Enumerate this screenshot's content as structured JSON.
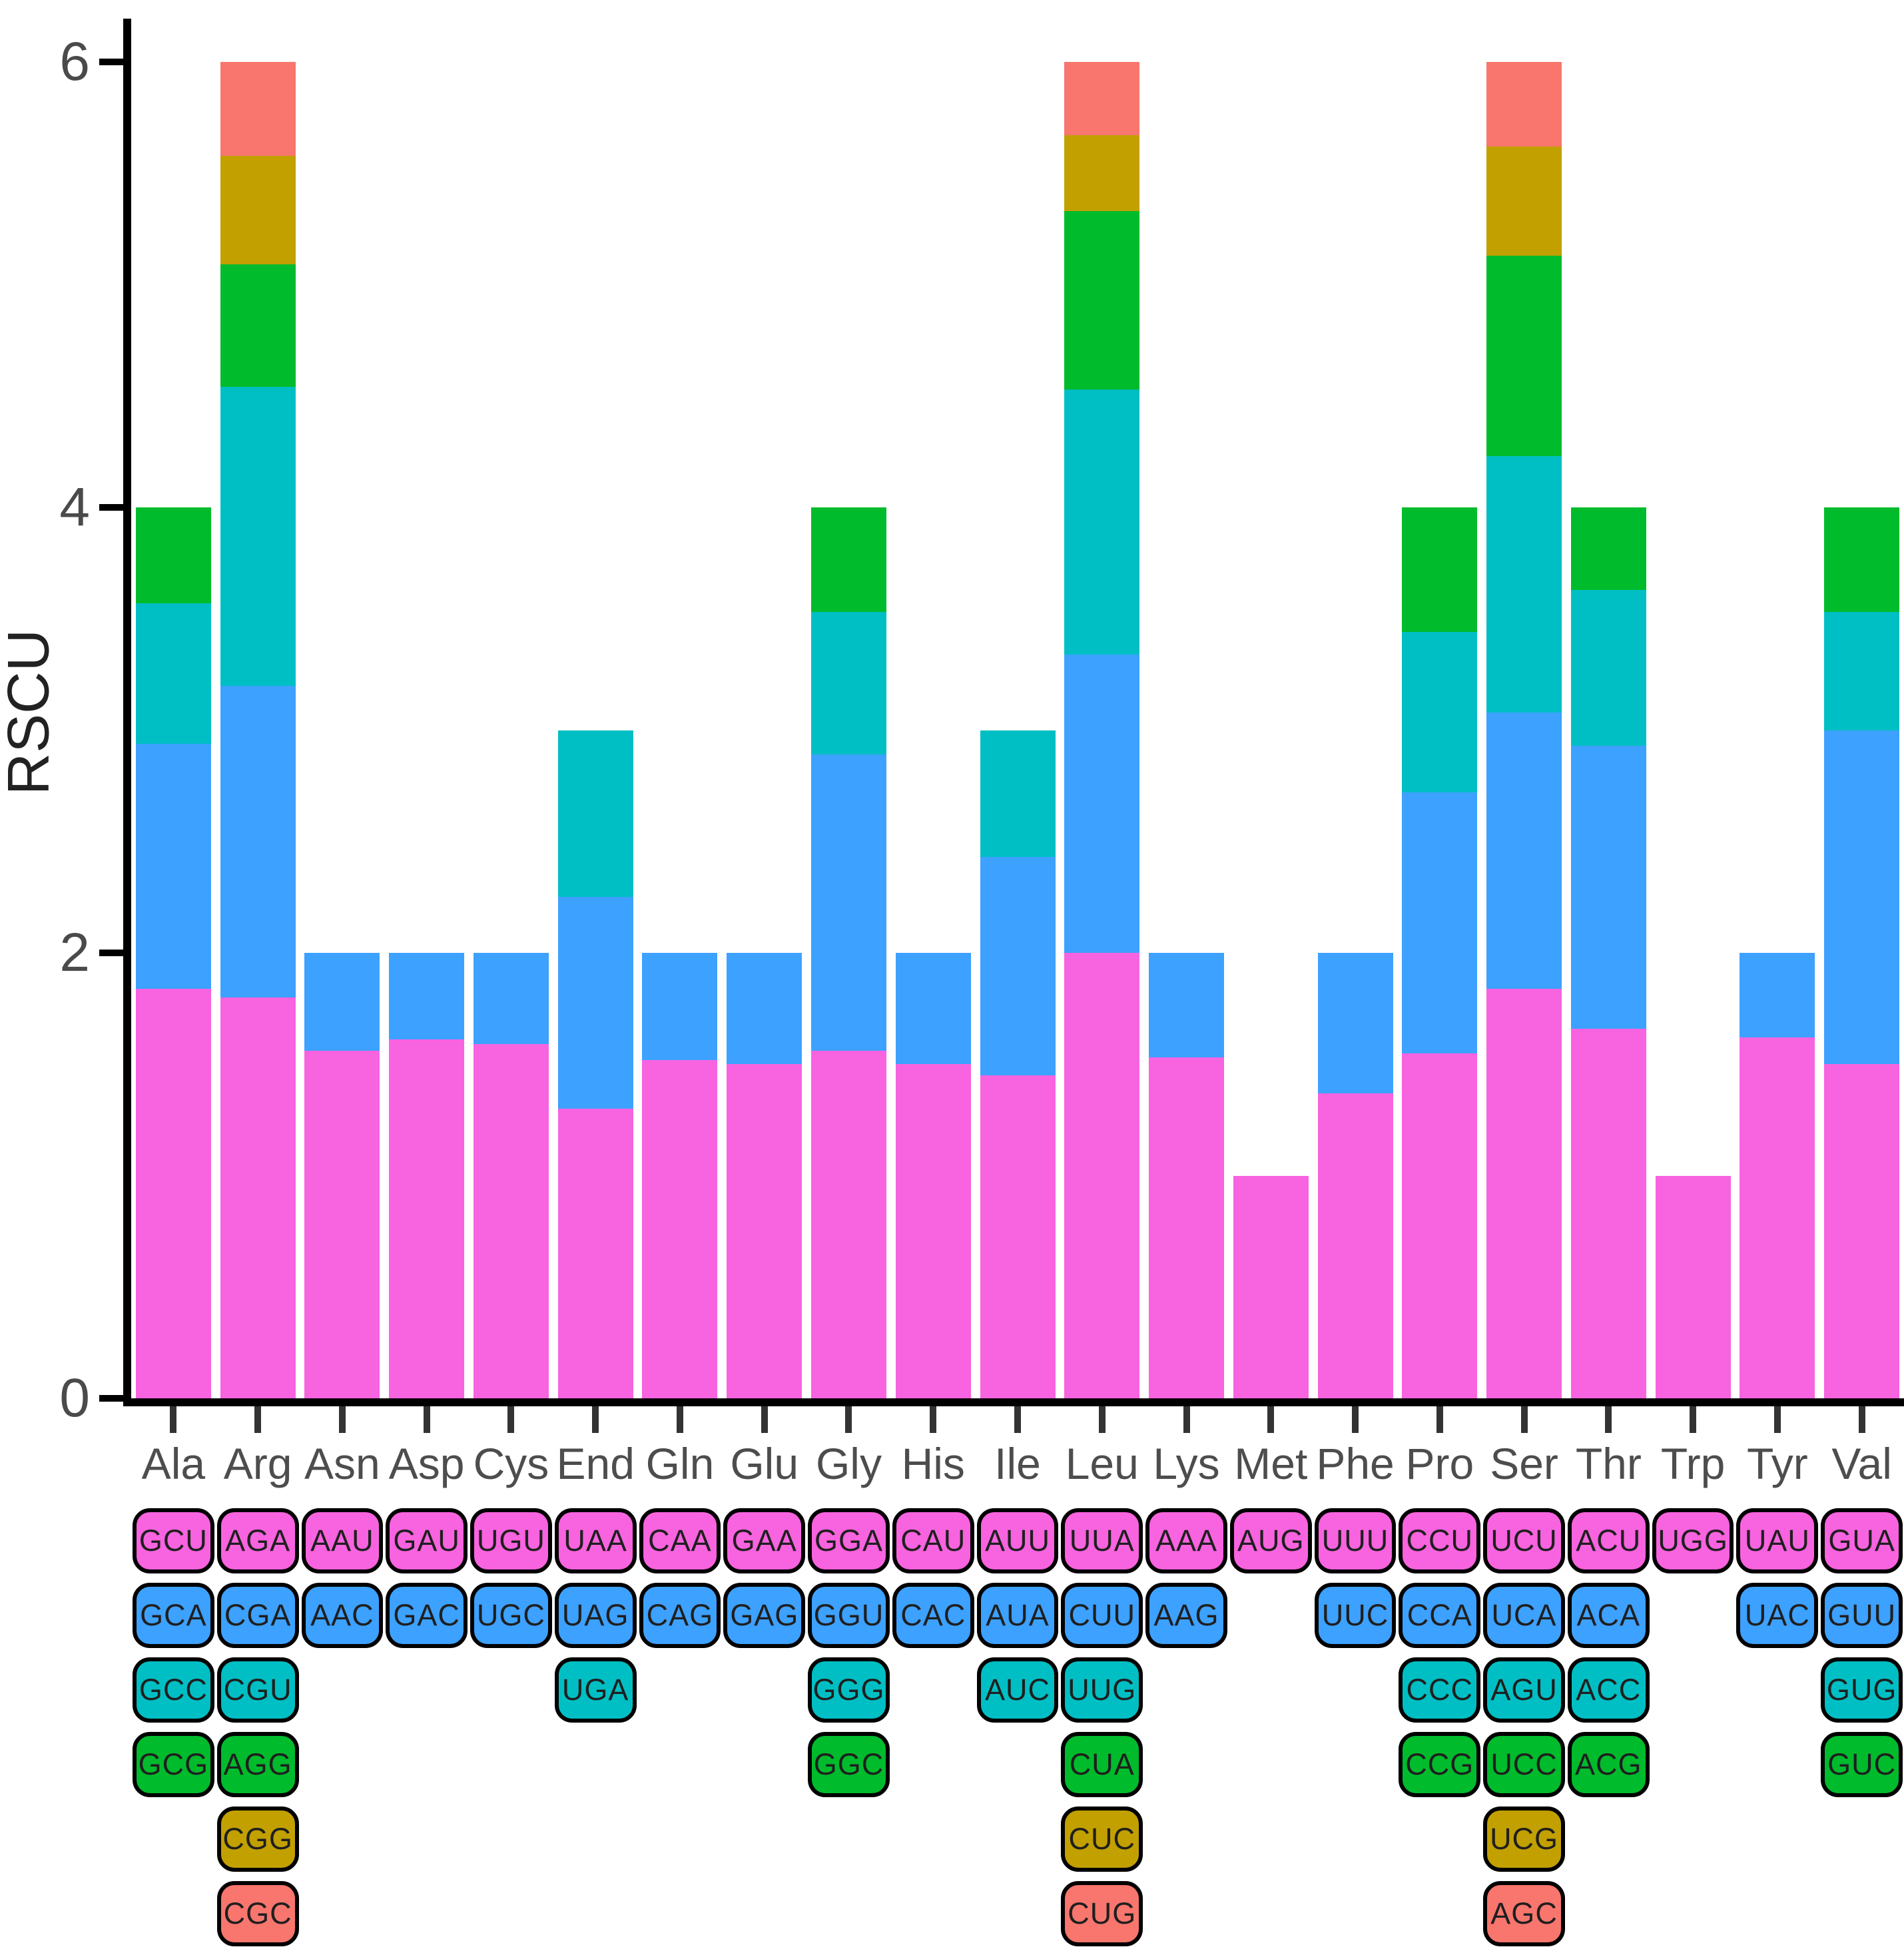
{
  "chart_data": {
    "type": "bar",
    "variant": "stacked",
    "title": "",
    "xlabel": "",
    "ylabel": "RSCU",
    "yticks": [
      0,
      2,
      4,
      6
    ],
    "ylim": [
      0,
      6.2
    ],
    "grid": "off",
    "legend": "codon-grid-below-axis",
    "axis_color": "#000000",
    "tick_label_color": "#4a4a4a",
    "category_label_color": "#4d4d4d",
    "rank_colors": [
      "#F863DF",
      "#3DA1FF",
      "#00BFC4",
      "#00BB2C",
      "#C2A000",
      "#F8766D"
    ],
    "categories": [
      "Ala",
      "Arg",
      "Asn",
      "Asp",
      "Cys",
      "End",
      "Gln",
      "Glu",
      "Gly",
      "His",
      "Ile",
      "Leu",
      "Lys",
      "Met",
      "Phe",
      "Pro",
      "Ser",
      "Thr",
      "Trp",
      "Tyr",
      "Val"
    ],
    "bars": [
      {
        "amino_acid": "Ala",
        "codons": [
          {
            "codon": "GCU",
            "rscu": 1.84
          },
          {
            "codon": "GCA",
            "rscu": 1.1
          },
          {
            "codon": "GCC",
            "rscu": 0.63
          },
          {
            "codon": "GCG",
            "rscu": 0.43
          }
        ]
      },
      {
        "amino_acid": "Arg",
        "codons": [
          {
            "codon": "AGA",
            "rscu": 1.8
          },
          {
            "codon": "CGA",
            "rscu": 1.4
          },
          {
            "codon": "CGU",
            "rscu": 1.34
          },
          {
            "codon": "AGG",
            "rscu": 0.55
          },
          {
            "codon": "CGG",
            "rscu": 0.49
          },
          {
            "codon": "CGC",
            "rscu": 0.42
          }
        ]
      },
      {
        "amino_acid": "Asn",
        "codons": [
          {
            "codon": "AAU",
            "rscu": 1.56
          },
          {
            "codon": "AAC",
            "rscu": 0.44
          }
        ]
      },
      {
        "amino_acid": "Asp",
        "codons": [
          {
            "codon": "GAU",
            "rscu": 1.61
          },
          {
            "codon": "GAC",
            "rscu": 0.39
          }
        ]
      },
      {
        "amino_acid": "Cys",
        "codons": [
          {
            "codon": "UGU",
            "rscu": 1.59
          },
          {
            "codon": "UGC",
            "rscu": 0.41
          }
        ]
      },
      {
        "amino_acid": "End",
        "codons": [
          {
            "codon": "UAA",
            "rscu": 1.3
          },
          {
            "codon": "UAG",
            "rscu": 0.95
          },
          {
            "codon": "UGA",
            "rscu": 0.75
          }
        ]
      },
      {
        "amino_acid": "Gln",
        "codons": [
          {
            "codon": "CAA",
            "rscu": 1.52
          },
          {
            "codon": "CAG",
            "rscu": 0.48
          }
        ]
      },
      {
        "amino_acid": "Glu",
        "codons": [
          {
            "codon": "GAA",
            "rscu": 1.5
          },
          {
            "codon": "GAG",
            "rscu": 0.5
          }
        ]
      },
      {
        "amino_acid": "Gly",
        "codons": [
          {
            "codon": "GGA",
            "rscu": 1.56
          },
          {
            "codon": "GGU",
            "rscu": 1.33
          },
          {
            "codon": "GGG",
            "rscu": 0.64
          },
          {
            "codon": "GGC",
            "rscu": 0.47
          }
        ]
      },
      {
        "amino_acid": "His",
        "codons": [
          {
            "codon": "CAU",
            "rscu": 1.5
          },
          {
            "codon": "CAC",
            "rscu": 0.5
          }
        ]
      },
      {
        "amino_acid": "Ile",
        "codons": [
          {
            "codon": "AUU",
            "rscu": 1.45
          },
          {
            "codon": "AUA",
            "rscu": 0.98
          },
          {
            "codon": "AUC",
            "rscu": 0.57
          }
        ]
      },
      {
        "amino_acid": "Leu",
        "codons": [
          {
            "codon": "UUA",
            "rscu": 2.0
          },
          {
            "codon": "CUU",
            "rscu": 1.34
          },
          {
            "codon": "UUG",
            "rscu": 1.19
          },
          {
            "codon": "CUA",
            "rscu": 0.8
          },
          {
            "codon": "CUC",
            "rscu": 0.34
          },
          {
            "codon": "CUG",
            "rscu": 0.33
          }
        ]
      },
      {
        "amino_acid": "Lys",
        "codons": [
          {
            "codon": "AAA",
            "rscu": 1.53
          },
          {
            "codon": "AAG",
            "rscu": 0.47
          }
        ]
      },
      {
        "amino_acid": "Met",
        "codons": [
          {
            "codon": "AUG",
            "rscu": 1.0
          }
        ]
      },
      {
        "amino_acid": "Phe",
        "codons": [
          {
            "codon": "UUU",
            "rscu": 1.37
          },
          {
            "codon": "UUC",
            "rscu": 0.63
          }
        ]
      },
      {
        "amino_acid": "Pro",
        "codons": [
          {
            "codon": "CCU",
            "rscu": 1.55
          },
          {
            "codon": "CCA",
            "rscu": 1.17
          },
          {
            "codon": "CCC",
            "rscu": 0.72
          },
          {
            "codon": "CCG",
            "rscu": 0.56
          }
        ]
      },
      {
        "amino_acid": "Ser",
        "codons": [
          {
            "codon": "UCU",
            "rscu": 1.84
          },
          {
            "codon": "UCA",
            "rscu": 1.24
          },
          {
            "codon": "AGU",
            "rscu": 1.15
          },
          {
            "codon": "UCC",
            "rscu": 0.9
          },
          {
            "codon": "UCG",
            "rscu": 0.49
          },
          {
            "codon": "AGC",
            "rscu": 0.38
          }
        ]
      },
      {
        "amino_acid": "Thr",
        "codons": [
          {
            "codon": "ACU",
            "rscu": 1.66
          },
          {
            "codon": "ACA",
            "rscu": 1.27
          },
          {
            "codon": "ACC",
            "rscu": 0.7
          },
          {
            "codon": "ACG",
            "rscu": 0.37
          }
        ]
      },
      {
        "amino_acid": "Trp",
        "codons": [
          {
            "codon": "UGG",
            "rscu": 1.0
          }
        ]
      },
      {
        "amino_acid": "Tyr",
        "codons": [
          {
            "codon": "UAU",
            "rscu": 1.62
          },
          {
            "codon": "UAC",
            "rscu": 0.38
          }
        ]
      },
      {
        "amino_acid": "Val",
        "codons": [
          {
            "codon": "GUA",
            "rscu": 1.5
          },
          {
            "codon": "GUU",
            "rscu": 1.5
          },
          {
            "codon": "GUG",
            "rscu": 0.53
          },
          {
            "codon": "GUC",
            "rscu": 0.47
          }
        ]
      }
    ]
  }
}
